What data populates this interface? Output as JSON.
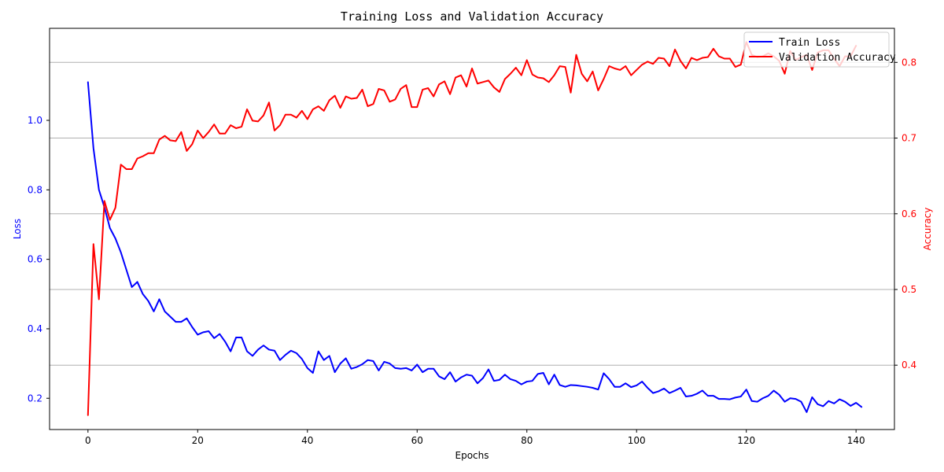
{
  "chart_data": {
    "type": "line",
    "title": "Training Loss and Validation Accuracy",
    "xlabel": "Epochs",
    "ylabel_left": "Loss",
    "ylabel_right": "Accuracy",
    "xlim": [
      -7,
      147
    ],
    "ylim_left": [
      0.11,
      1.265
    ],
    "ylim_right": [
      0.315,
      0.845
    ],
    "x_ticks": [
      0,
      20,
      40,
      60,
      80,
      100,
      120,
      140
    ],
    "y_left_ticks": [
      0.2,
      0.4,
      0.6,
      0.8,
      1.0
    ],
    "y_left_tick_labels": [
      "0.2",
      "0.4",
      "0.6",
      "0.8",
      "1.0"
    ],
    "y_right_ticks": [
      0.4,
      0.5,
      0.6,
      0.7,
      0.8
    ],
    "y_right_tick_labels": [
      "0.4",
      "0.5",
      "0.6",
      "0.7",
      "0.8"
    ],
    "grid": "horizontal (right axis)",
    "legend_position": "top-right",
    "colors": {
      "loss": "#0000ff",
      "accuracy": "#ff0000",
      "grid": "#b0b0b0",
      "axis": "#000000"
    },
    "series": [
      {
        "name": "Train Loss",
        "axis": "left",
        "color": "#0000ff",
        "values": [
          1.11,
          0.92,
          0.8,
          0.75,
          0.69,
          0.66,
          0.62,
          0.57,
          0.52,
          0.535,
          0.5,
          0.48,
          0.45,
          0.485,
          0.45,
          0.435,
          0.42,
          0.42,
          0.43,
          0.405,
          0.383,
          0.39,
          0.393,
          0.373,
          0.385,
          0.363,
          0.335,
          0.375,
          0.375,
          0.335,
          0.322,
          0.34,
          0.352,
          0.34,
          0.337,
          0.31,
          0.325,
          0.337,
          0.33,
          0.313,
          0.287,
          0.273,
          0.335,
          0.31,
          0.322,
          0.275,
          0.3,
          0.315,
          0.285,
          0.29,
          0.298,
          0.31,
          0.307,
          0.28,
          0.305,
          0.3,
          0.287,
          0.285,
          0.287,
          0.28,
          0.297,
          0.275,
          0.285,
          0.285,
          0.263,
          0.255,
          0.275,
          0.248,
          0.26,
          0.268,
          0.265,
          0.243,
          0.258,
          0.283,
          0.25,
          0.253,
          0.268,
          0.255,
          0.25,
          0.24,
          0.248,
          0.25,
          0.27,
          0.273,
          0.24,
          0.268,
          0.238,
          0.233,
          0.238,
          0.237,
          0.235,
          0.233,
          0.23,
          0.225,
          0.272,
          0.255,
          0.233,
          0.233,
          0.243,
          0.232,
          0.237,
          0.248,
          0.23,
          0.215,
          0.22,
          0.228,
          0.215,
          0.222,
          0.23,
          0.205,
          0.207,
          0.213,
          0.222,
          0.207,
          0.207,
          0.198,
          0.198,
          0.197,
          0.202,
          0.205,
          0.225,
          0.192,
          0.19,
          0.2,
          0.207,
          0.222,
          0.21,
          0.19,
          0.2,
          0.198,
          0.19,
          0.16,
          0.203,
          0.183,
          0.177,
          0.192,
          0.185,
          0.197,
          0.19,
          0.178,
          0.187,
          0.175
        ]
      },
      {
        "name": "Validation Accuracy",
        "axis": "right",
        "color": "#ff0000",
        "values": [
          0.334,
          0.56,
          0.487,
          0.617,
          0.592,
          0.608,
          0.665,
          0.659,
          0.659,
          0.673,
          0.676,
          0.68,
          0.68,
          0.698,
          0.703,
          0.697,
          0.696,
          0.708,
          0.683,
          0.692,
          0.71,
          0.7,
          0.708,
          0.718,
          0.706,
          0.706,
          0.717,
          0.713,
          0.715,
          0.738,
          0.723,
          0.722,
          0.73,
          0.747,
          0.71,
          0.717,
          0.731,
          0.731,
          0.727,
          0.736,
          0.725,
          0.738,
          0.742,
          0.736,
          0.75,
          0.756,
          0.74,
          0.755,
          0.752,
          0.753,
          0.764,
          0.742,
          0.745,
          0.765,
          0.763,
          0.748,
          0.751,
          0.765,
          0.77,
          0.741,
          0.741,
          0.764,
          0.766,
          0.755,
          0.771,
          0.775,
          0.758,
          0.78,
          0.783,
          0.768,
          0.792,
          0.772,
          0.774,
          0.776,
          0.767,
          0.761,
          0.778,
          0.785,
          0.793,
          0.783,
          0.803,
          0.784,
          0.78,
          0.779,
          0.774,
          0.783,
          0.795,
          0.794,
          0.76,
          0.81,
          0.785,
          0.775,
          0.788,
          0.763,
          0.778,
          0.795,
          0.792,
          0.79,
          0.795,
          0.783,
          0.79,
          0.797,
          0.801,
          0.798,
          0.806,
          0.805,
          0.795,
          0.817,
          0.802,
          0.792,
          0.806,
          0.803,
          0.806,
          0.807,
          0.818,
          0.808,
          0.805,
          0.805,
          0.794,
          0.797,
          0.827,
          0.81,
          0.807,
          0.808,
          0.812,
          0.808,
          0.802,
          0.785,
          0.815,
          0.803,
          0.807,
          0.81,
          0.79,
          0.813,
          0.816,
          0.816,
          0.805,
          0.795,
          0.808,
          0.808,
          0.822
        ]
      }
    ]
  }
}
